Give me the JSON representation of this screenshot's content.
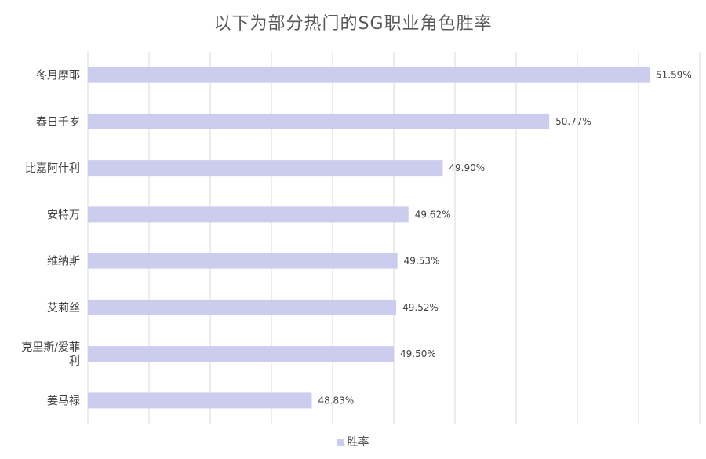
{
  "chart_data": {
    "type": "bar",
    "orientation": "horizontal",
    "title": "以下为部分热门的SG职业角色胜率",
    "categories": [
      "冬月摩耶",
      "春日千岁",
      "比嘉阿什利",
      "安特万",
      "维纳斯",
      "艾莉丝",
      "克里斯/爱菲利",
      "姜马禄"
    ],
    "series": [
      {
        "name": "胜率",
        "values": [
          51.59,
          50.77,
          49.9,
          49.62,
          49.53,
          49.52,
          49.5,
          48.83
        ],
        "labels": [
          "51.59%",
          "50.77%",
          "49.90%",
          "49.62%",
          "49.53%",
          "49.52%",
          "49.50%",
          "48.83%"
        ]
      }
    ],
    "xlim": [
      47,
      52
    ],
    "grid": true,
    "legend": "bottom",
    "colors": {
      "bar": "#cccdee",
      "grid": "#d9d9d9",
      "text": "#404040",
      "title": "#595959"
    }
  }
}
